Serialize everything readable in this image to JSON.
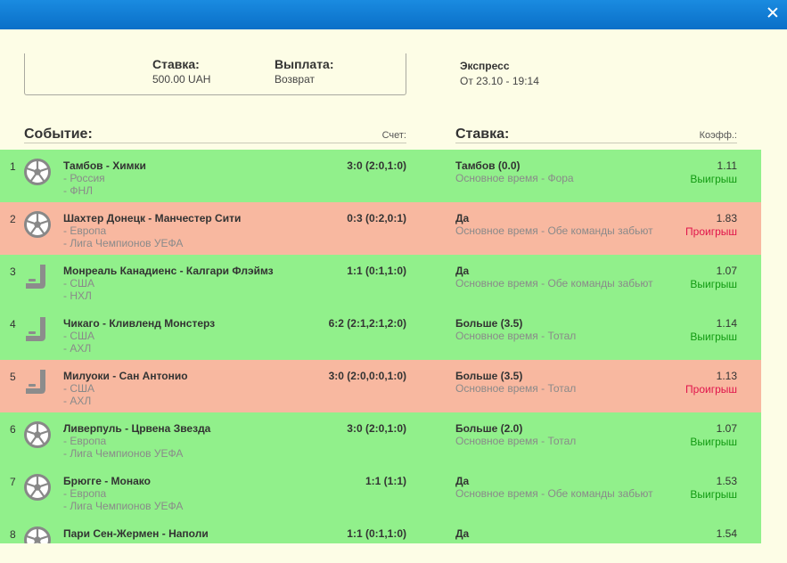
{
  "summary": {
    "stake_label": "Ставка:",
    "stake_value": "500.00 UAH",
    "payout_label": "Выплата:",
    "payout_value": "Возврат"
  },
  "bet_type": {
    "name": "Экспресс",
    "date": "От 23.10 - 19:14"
  },
  "headers": {
    "event": "Событие:",
    "score": "Счет:",
    "bet": "Ставка:",
    "coef": "Коэфф.:"
  },
  "colors": {
    "win_bg": "#91f08b",
    "lose_bg": "#f8b8a0",
    "win_text": "#119911",
    "lose_text": "#e0144b",
    "titlebar": "#0a6fc8"
  },
  "rows": [
    {
      "num": "1",
      "sport": "soccer-ball-icon",
      "status": "win",
      "event": "Тамбов - Химки",
      "sub1": "- Россия",
      "sub2": "- ФНЛ",
      "score": "3:0 (2:0,1:0)",
      "pick": "Тамбов (0.0)",
      "market": "Основное время - Фора",
      "coef": "1.11",
      "result": "Выигрыш"
    },
    {
      "num": "2",
      "sport": "soccer-ball-icon",
      "status": "lose",
      "event": "Шахтер Донецк - Манчестер Сити",
      "sub1": "- Европа",
      "sub2": "- Лига Чемпионов УЕФА",
      "score": "0:3 (0:2,0:1)",
      "pick": "Да",
      "market": "Основное время - Обе команды забьют",
      "coef": "1.83",
      "result": "Проигрыш"
    },
    {
      "num": "3",
      "sport": "hockey-stick-icon",
      "status": "win",
      "event": "Монреаль Канадиенс - Калгари Флэймз",
      "sub1": "- США",
      "sub2": "- НХЛ",
      "score": "1:1 (0:1,1:0)",
      "pick": "Да",
      "market": "Основное время - Обе команды забьют",
      "coef": "1.07",
      "result": "Выигрыш"
    },
    {
      "num": "4",
      "sport": "hockey-stick-icon",
      "status": "win",
      "event": "Чикаго - Кливленд Монстерз",
      "sub1": "- США",
      "sub2": "- АХЛ",
      "score": "6:2 (2:1,2:1,2:0)",
      "pick": "Больше (3.5)",
      "market": "Основное время - Тотал",
      "coef": "1.14",
      "result": "Выигрыш"
    },
    {
      "num": "5",
      "sport": "hockey-stick-icon",
      "status": "lose",
      "event": "Милуоки - Сан Антонио",
      "sub1": "- США",
      "sub2": "- АХЛ",
      "score": "3:0 (2:0,0:0,1:0)",
      "pick": "Больше (3.5)",
      "market": "Основное время - Тотал",
      "coef": "1.13",
      "result": "Проигрыш"
    },
    {
      "num": "6",
      "sport": "soccer-ball-icon",
      "status": "win",
      "event": "Ливерпуль - Црвена Звезда",
      "sub1": "- Европа",
      "sub2": "- Лига Чемпионов УЕФА",
      "score": "3:0 (2:0,1:0)",
      "pick": "Больше (2.0)",
      "market": "Основное время - Тотал",
      "coef": "1.07",
      "result": "Выигрыш"
    },
    {
      "num": "7",
      "sport": "soccer-ball-icon",
      "status": "win",
      "event": "Брюгге - Монако",
      "sub1": "- Европа",
      "sub2": "- Лига Чемпионов УЕФА",
      "score": "1:1 (1:1)",
      "pick": "Да",
      "market": "Основное время - Обе команды забьют",
      "coef": "1.53",
      "result": "Выигрыш"
    },
    {
      "num": "8",
      "sport": "soccer-ball-icon",
      "status": "win",
      "event": "Пари Сен-Жермен - Наполи",
      "sub1": "",
      "sub2": "",
      "score": "1:1 (0:1,1:0)",
      "pick": "Да",
      "market": "",
      "coef": "1.54",
      "result": ""
    }
  ]
}
